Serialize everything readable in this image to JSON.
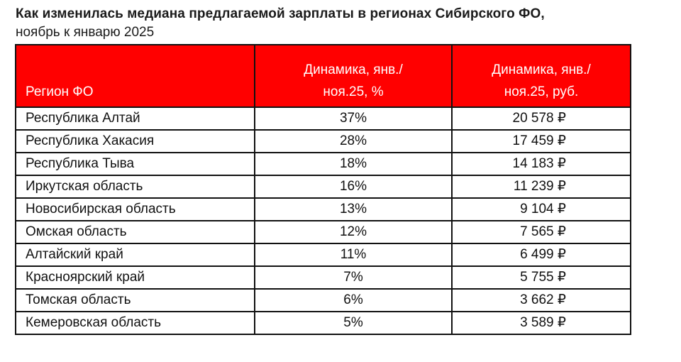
{
  "header": {
    "title": "Как изменилась медиана предлагаемой зарплаты в регионах Сибирского ФО,",
    "subtitle": "ноябрь к январю 2025"
  },
  "table": {
    "columns": [
      {
        "line1": "",
        "line2": "Регион ФО"
      },
      {
        "line1": "Динамика, янв./",
        "line2": "ноя.25, %"
      },
      {
        "line1": "Динамика, янв./",
        "line2": "ноя.25, руб."
      }
    ],
    "rows": [
      {
        "region": "Республика Алтай",
        "pct": "37%",
        "rub": "20 578 ₽"
      },
      {
        "region": "Республика Хакасия",
        "pct": "28%",
        "rub": "17 459 ₽"
      },
      {
        "region": "Республика Тыва",
        "pct": "18%",
        "rub": "14 183 ₽"
      },
      {
        "region": "Иркутская область",
        "pct": "16%",
        "rub": "11 239 ₽"
      },
      {
        "region": "Новосибирская область",
        "pct": "13%",
        "rub": "9 104 ₽"
      },
      {
        "region": "Омская область",
        "pct": "12%",
        "rub": "7 565 ₽"
      },
      {
        "region": "Алтайский край",
        "pct": "11%",
        "rub": "6 499 ₽"
      },
      {
        "region": "Красноярский край",
        "pct": "7%",
        "rub": "5 755 ₽"
      },
      {
        "region": "Томская область",
        "pct": "6%",
        "rub": "3 662 ₽"
      },
      {
        "region": "Кемеровская область",
        "pct": "5%",
        "rub": "3 589 ₽"
      }
    ]
  },
  "colors": {
    "header_bg": "#ff0000",
    "header_text": "#ffffff",
    "border": "#111111"
  },
  "chart_data": {
    "type": "table",
    "title": "Как изменилась медиана предлагаемой зарплаты в регионах Сибирского ФО, ноябрь к январю 2025",
    "columns": [
      "Регион ФО",
      "Динамика, янв./ноя.25, %",
      "Динамика, янв./ноя.25, руб."
    ],
    "categories": [
      "Республика Алтай",
      "Республика Хакасия",
      "Республика Тыва",
      "Иркутская область",
      "Новосибирская область",
      "Омская область",
      "Алтайский край",
      "Красноярский край",
      "Томская область",
      "Кемеровская область"
    ],
    "series": [
      {
        "name": "Динамика, янв./ноя.25, %",
        "values": [
          37,
          28,
          18,
          16,
          13,
          12,
          11,
          7,
          6,
          5
        ]
      },
      {
        "name": "Динамика, янв./ноя.25, руб.",
        "values": [
          20578,
          17459,
          14183,
          11239,
          9104,
          7565,
          6499,
          5755,
          3662,
          3589
        ]
      }
    ]
  }
}
